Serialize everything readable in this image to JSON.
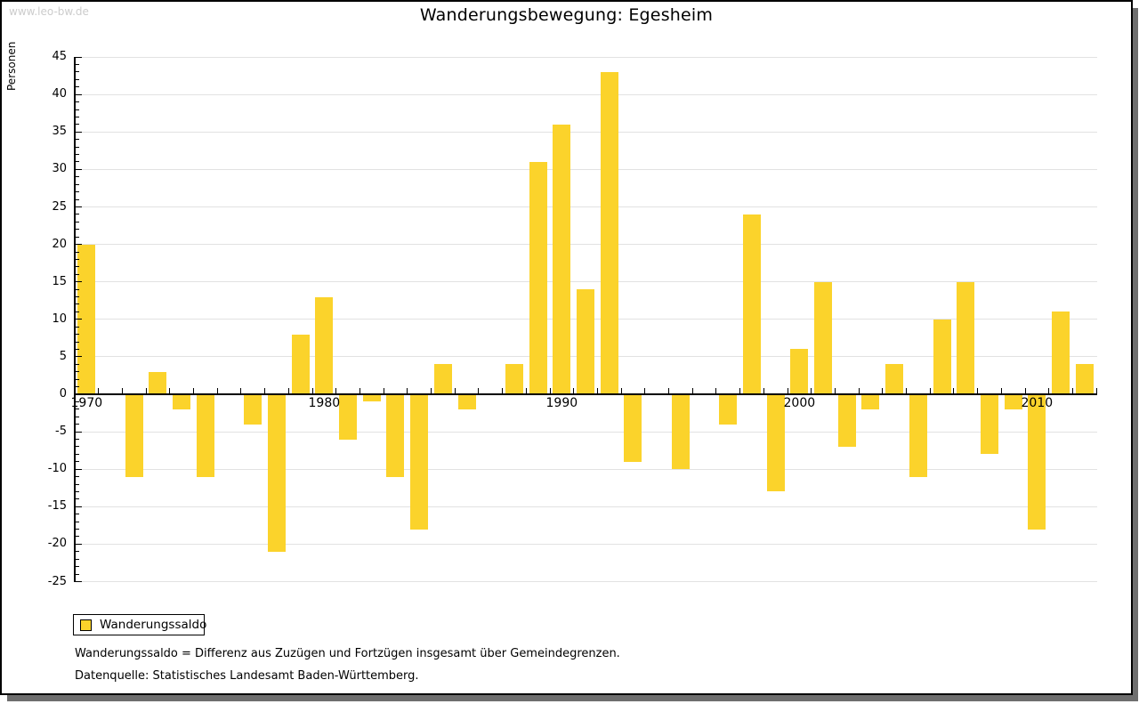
{
  "brand": {
    "watermark": "www.leo-bw.de"
  },
  "header": {
    "title": "Wanderungsbewegung: Egesheim"
  },
  "legend": {
    "label": "Wanderungssaldo"
  },
  "footnotes": [
    "Wanderungssaldo = Differenz aus Zuzügen und Fortzügen insgesamt über Gemeindegrenzen.",
    "Datenquelle: Statistisches Landesamt Baden-Württemberg."
  ],
  "chart_data": {
    "type": "bar",
    "title": "Wanderungsbewegung: Egesheim",
    "xlabel": "",
    "ylabel": "Personen",
    "categories": [
      1970,
      1971,
      1972,
      1973,
      1974,
      1975,
      1976,
      1977,
      1978,
      1979,
      1980,
      1981,
      1982,
      1983,
      1984,
      1985,
      1986,
      1987,
      1988,
      1989,
      1990,
      1991,
      1992,
      1993,
      1994,
      1995,
      1996,
      1997,
      1998,
      1999,
      2000,
      2001,
      2002,
      2003,
      2004,
      2005,
      2006,
      2007,
      2008,
      2009,
      2010,
      2011,
      2012
    ],
    "series": [
      {
        "name": "Wanderungssaldo",
        "values": [
          20,
          0,
          -11,
          3,
          -2,
          -11,
          0,
          -4,
          -21,
          8,
          13,
          -6,
          -1,
          -11,
          -18,
          4,
          -2,
          0,
          4,
          31,
          36,
          14,
          43,
          -9,
          0,
          -10,
          0,
          -4,
          24,
          -13,
          6,
          15,
          -7,
          -2,
          4,
          -11,
          10,
          15,
          -8,
          -2,
          -18,
          11,
          4
        ]
      }
    ],
    "ylim": [
      -25,
      45
    ],
    "ytick_step": 5,
    "ytick_minor_step": 1,
    "xtick_labels": [
      "1970",
      "1980",
      "1990",
      "2000",
      "2010"
    ],
    "bar_color": "#fbd32b",
    "grid": true,
    "gridline_color": "#e2e2e2",
    "axis_color": "#000000",
    "legend_position": "bottom-left"
  }
}
